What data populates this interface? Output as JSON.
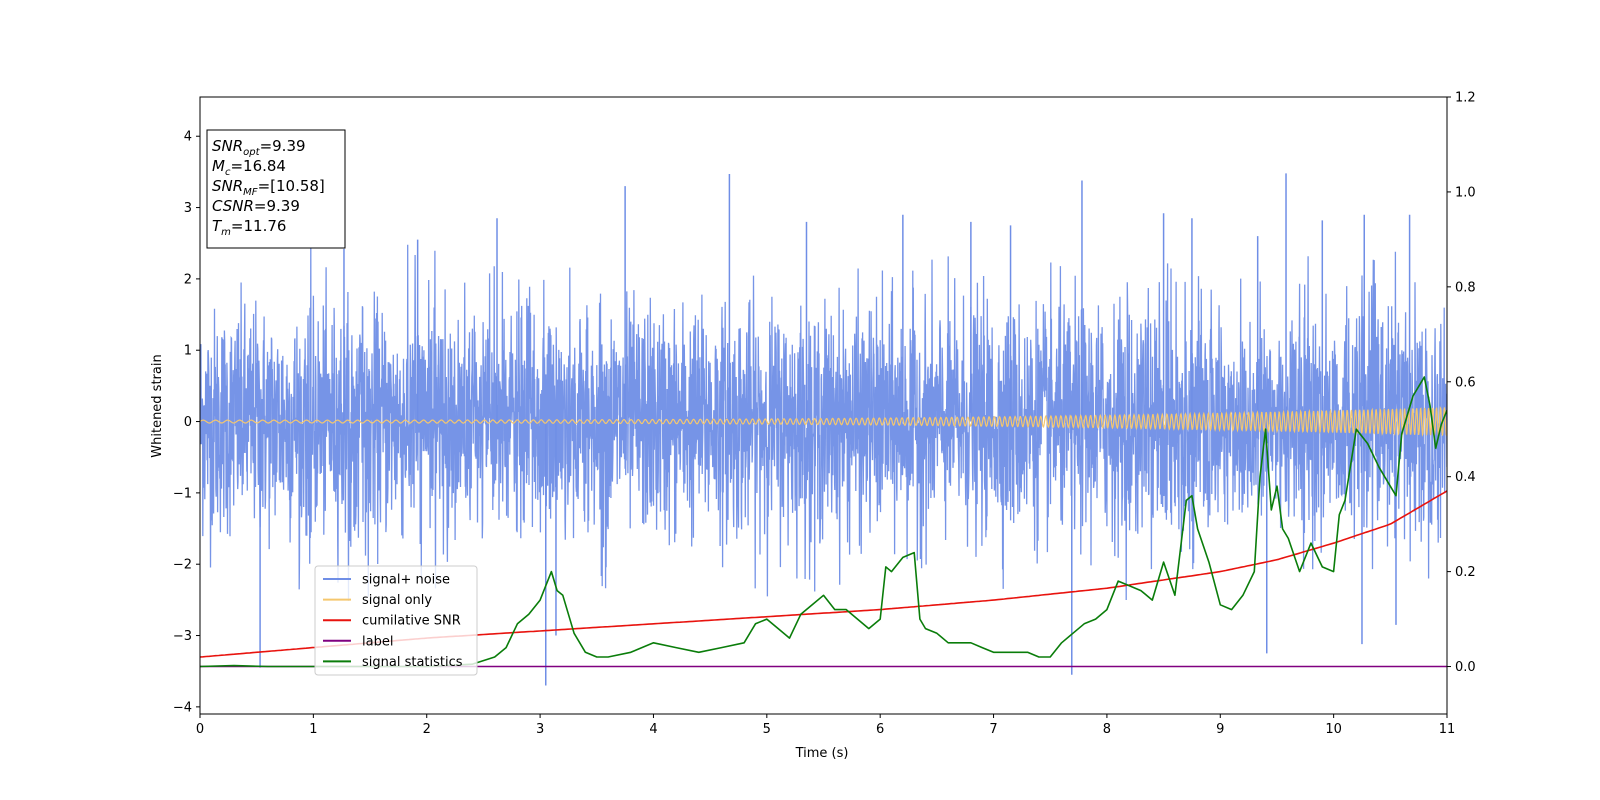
{
  "chart_data": {
    "type": "line",
    "xlabel": "Time (s)",
    "ylabel": "Whitened strain",
    "xlim": [
      0,
      11
    ],
    "ylim_left": [
      -4.1,
      4.55
    ],
    "ylim_right": [
      -0.1,
      1.2
    ],
    "x_ticks": [
      0,
      1,
      2,
      3,
      4,
      5,
      6,
      7,
      8,
      9,
      10,
      11
    ],
    "y_ticks_left": [
      -4,
      -3,
      -2,
      -1,
      0,
      1,
      2,
      3,
      4
    ],
    "y_ticks_right": [
      0.0,
      0.2,
      0.4,
      0.6,
      0.8,
      1.0,
      1.2
    ],
    "legend_placement": "lower-left",
    "grid": false,
    "series": [
      {
        "name": "signal+ noise",
        "axis": "left",
        "color": "#6f8ee6",
        "description_of_values": "dense noisy strain, mostly within -2.5..2.5 with spikes",
        "spikes": [
          [
            0.53,
            -3.45
          ],
          [
            1.27,
            2.42
          ],
          [
            1.92,
            2.55
          ],
          [
            2.62,
            2.85
          ],
          [
            3.05,
            -3.7
          ],
          [
            3.14,
            -3.0
          ],
          [
            3.75,
            3.3
          ],
          [
            4.67,
            3.47
          ],
          [
            5.35,
            2.8
          ],
          [
            6.2,
            2.9
          ],
          [
            6.8,
            2.8
          ],
          [
            7.15,
            2.75
          ],
          [
            7.69,
            -3.55
          ],
          [
            7.78,
            3.38
          ],
          [
            8.5,
            2.92
          ],
          [
            8.75,
            2.85
          ],
          [
            9.33,
            2.6
          ],
          [
            9.41,
            -3.25
          ],
          [
            9.58,
            3.48
          ],
          [
            9.9,
            2.82
          ],
          [
            10.25,
            -3.12
          ],
          [
            10.27,
            2.9
          ],
          [
            10.55,
            -2.85
          ],
          [
            10.67,
            2.9
          ]
        ]
      },
      {
        "name": "signal only",
        "axis": "left",
        "color": "#f5c76e",
        "description_of_values": "chirp oscillation around 0, amplitude growing from ~0.02 to ~0.2"
      },
      {
        "name": "cumilative SNR",
        "axis": "right",
        "color": "#e8130e",
        "x": [
          0,
          1,
          2,
          3,
          4,
          5,
          6,
          7,
          8,
          9,
          9.5,
          10,
          10.5,
          11
        ],
        "values": [
          0.02,
          0.04,
          0.06,
          0.075,
          0.09,
          0.105,
          0.12,
          0.14,
          0.165,
          0.2,
          0.225,
          0.26,
          0.3,
          0.37
        ]
      },
      {
        "name": "label",
        "axis": "right",
        "color": "#800080",
        "x": [
          0,
          11
        ],
        "values": [
          0.0,
          0.0
        ]
      },
      {
        "name": "signal statistics",
        "axis": "right",
        "color": "#0a7d0a",
        "x": [
          0,
          0.3,
          0.6,
          1.0,
          1.5,
          2.0,
          2.4,
          2.6,
          2.7,
          2.8,
          2.9,
          3.0,
          3.1,
          3.15,
          3.2,
          3.3,
          3.4,
          3.5,
          3.6,
          3.8,
          4.0,
          4.2,
          4.4,
          4.6,
          4.8,
          4.9,
          5.0,
          5.1,
          5.2,
          5.3,
          5.4,
          5.5,
          5.6,
          5.7,
          5.8,
          5.9,
          6.0,
          6.05,
          6.1,
          6.2,
          6.3,
          6.35,
          6.4,
          6.5,
          6.6,
          6.7,
          6.8,
          6.9,
          7.0,
          7.1,
          7.2,
          7.3,
          7.4,
          7.5,
          7.6,
          7.7,
          7.8,
          7.9,
          8.0,
          8.1,
          8.2,
          8.3,
          8.4,
          8.5,
          8.6,
          8.7,
          8.75,
          8.8,
          8.9,
          9.0,
          9.1,
          9.2,
          9.3,
          9.35,
          9.4,
          9.45,
          9.5,
          9.55,
          9.6,
          9.7,
          9.8,
          9.9,
          10.0,
          10.05,
          10.1,
          10.2,
          10.3,
          10.4,
          10.5,
          10.55,
          10.6,
          10.7,
          10.8,
          10.85,
          10.9,
          10.95,
          11.0
        ],
        "values": [
          0.0,
          0.002,
          0.0,
          0.0,
          0.0,
          0.0,
          0.005,
          0.02,
          0.04,
          0.09,
          0.11,
          0.14,
          0.2,
          0.16,
          0.15,
          0.07,
          0.03,
          0.02,
          0.02,
          0.03,
          0.05,
          0.04,
          0.03,
          0.04,
          0.05,
          0.09,
          0.1,
          0.08,
          0.06,
          0.11,
          0.13,
          0.15,
          0.12,
          0.12,
          0.1,
          0.08,
          0.1,
          0.21,
          0.2,
          0.23,
          0.24,
          0.1,
          0.08,
          0.07,
          0.05,
          0.05,
          0.05,
          0.04,
          0.03,
          0.03,
          0.03,
          0.03,
          0.02,
          0.02,
          0.05,
          0.07,
          0.09,
          0.1,
          0.12,
          0.18,
          0.17,
          0.16,
          0.14,
          0.22,
          0.15,
          0.35,
          0.36,
          0.29,
          0.22,
          0.13,
          0.12,
          0.15,
          0.2,
          0.4,
          0.5,
          0.33,
          0.38,
          0.29,
          0.27,
          0.2,
          0.26,
          0.21,
          0.2,
          0.32,
          0.35,
          0.5,
          0.47,
          0.42,
          0.38,
          0.36,
          0.49,
          0.57,
          0.61,
          0.55,
          0.46,
          0.51,
          0.54
        ]
      }
    ],
    "annotation": {
      "lines": [
        {
          "base": "SNR",
          "sub": "opt",
          "rest": "=9.39"
        },
        {
          "base": "M",
          "sub": "c",
          "rest": "=16.84"
        },
        {
          "base": "SNR",
          "sub": "MF",
          "rest": "=[10.58]"
        },
        {
          "base": "CSNR",
          "sub": "",
          "rest": "=9.39"
        },
        {
          "base": "T",
          "sub": "m",
          "rest": "=11.76"
        }
      ]
    }
  }
}
